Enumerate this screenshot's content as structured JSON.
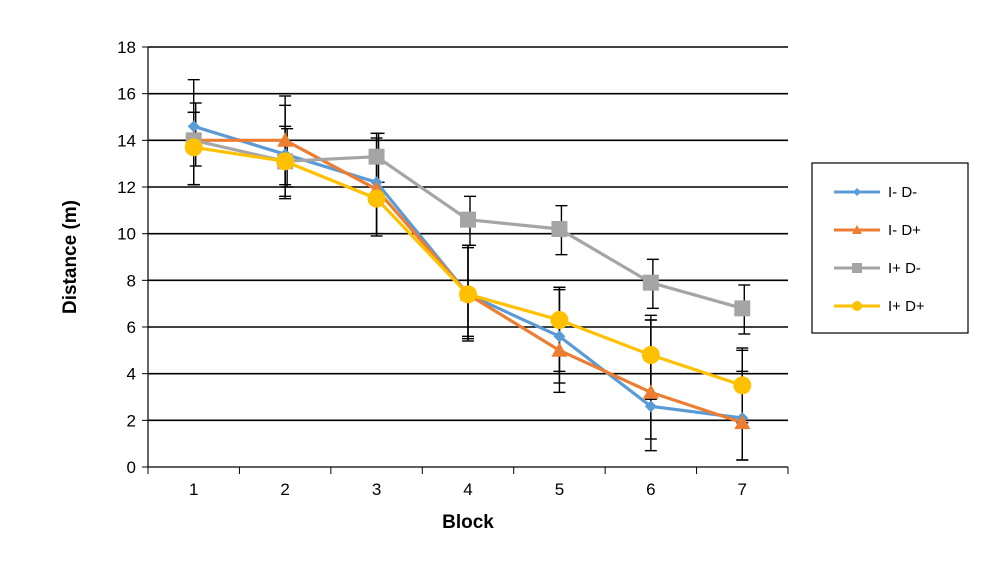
{
  "chart_data": {
    "type": "line",
    "title": "",
    "xlabel": "Block",
    "ylabel": "Distance (m)",
    "categories": [
      "1",
      "2",
      "3",
      "4",
      "5",
      "6",
      "7"
    ],
    "ylim": [
      0,
      18
    ],
    "yticks": [
      "0",
      "2",
      "4",
      "6",
      "8",
      "10",
      "12",
      "14",
      "16",
      "18"
    ],
    "grid": true,
    "legend_position": "right",
    "series": [
      {
        "name": "I- D-",
        "color": "#5B9BD5",
        "marker": "diamond",
        "values": [
          14.6,
          13.4,
          12.2,
          7.4,
          5.6,
          2.6,
          2.1
        ],
        "error_low": [
          12.1,
          11.6,
          10.0,
          5.6,
          3.2,
          0.7,
          0.3
        ],
        "error_high": [
          16.6,
          15.5,
          14.3,
          9.5,
          7.7,
          6.3,
          5.0
        ]
      },
      {
        "name": "I- D+",
        "color": "#ED7D31",
        "marker": "triangle",
        "values": [
          14.0,
          14.0,
          11.9,
          7.4,
          5.0,
          3.2,
          1.9
        ],
        "error_low": [
          12.1,
          12.1,
          9.9,
          5.4,
          3.6,
          1.2,
          0.3
        ],
        "error_high": [
          15.2,
          15.9,
          14.1,
          9.4,
          7.7,
          6.3,
          4.1
        ]
      },
      {
        "name": "I+ D-",
        "color": "#A5A5A5",
        "marker": "square",
        "values": [
          14.0,
          13.1,
          13.3,
          10.6,
          10.2,
          7.9,
          6.8
        ],
        "error_low": [
          12.9,
          12.0,
          12.2,
          9.5,
          9.1,
          6.8,
          5.7
        ],
        "error_high": [
          15.6,
          14.5,
          14.3,
          11.6,
          11.2,
          8.9,
          7.8
        ]
      },
      {
        "name": "I+ D+",
        "color": "#FFC000",
        "marker": "circle",
        "values": [
          13.7,
          13.1,
          11.5,
          7.4,
          6.3,
          4.8,
          3.5
        ],
        "error_low": [
          12.1,
          11.5,
          10.0,
          5.5,
          4.1,
          2.9,
          1.9
        ],
        "error_high": [
          15.2,
          14.6,
          13.1,
          9.5,
          7.6,
          6.5,
          5.1
        ]
      }
    ]
  }
}
